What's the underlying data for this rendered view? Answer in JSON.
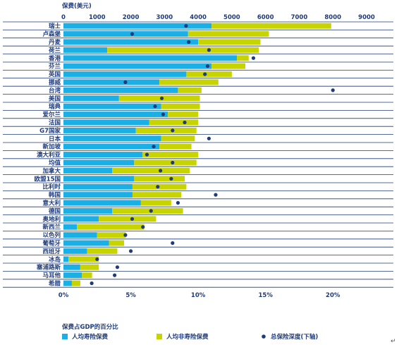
{
  "chart_data": {
    "type": "bar",
    "subtype": "stacked-horizontal-with-dots",
    "top_axis": {
      "title": "保费(美元)",
      "ticks": [
        0,
        1000,
        2000,
        3000,
        4000,
        5000,
        6000,
        7000,
        8000,
        9000
      ],
      "range": [
        0,
        9000
      ]
    },
    "bottom_axis": {
      "title": "保费占GDP的百分比",
      "ticks": [
        "0%",
        "5%",
        "10%",
        "15%",
        "20%"
      ],
      "range": [
        0,
        22.5
      ],
      "tick_values": [
        0,
        5,
        10,
        15,
        20
      ]
    },
    "categories": [
      "瑞士",
      "卢森堡",
      "丹麦",
      "荷兰",
      "香港",
      "芬兰",
      "英国",
      "挪威",
      "台湾",
      "美国",
      "瑞典",
      "爱尔兰",
      "法国",
      "G7国家",
      "日本",
      "新加坡",
      "澳大利亚",
      "均值",
      "加拿大",
      "欧盟15国",
      "比利时",
      "韩国",
      "意大利",
      "德国",
      "奥地利",
      "新西兰",
      "以色列",
      "葡萄牙",
      "西班牙",
      "冰岛",
      "塞浦路斯",
      "马耳他",
      "希腊"
    ],
    "series": [
      {
        "name": "人均寿险保费",
        "color": "#1ab0e6",
        "values": [
          4400,
          3700,
          4000,
          1300,
          5150,
          4400,
          3650,
          2850,
          3400,
          1650,
          2900,
          3100,
          2550,
          2150,
          2900,
          2850,
          2350,
          2100,
          1450,
          2100,
          2050,
          2050,
          2300,
          1450,
          1050,
          400,
          1000,
          1350,
          700,
          150,
          500,
          550,
          250
        ]
      },
      {
        "name": "人均非寿险保费",
        "color": "#c8d400",
        "values": [
          3550,
          2400,
          1850,
          4500,
          350,
          1000,
          1350,
          1750,
          700,
          2400,
          1150,
          900,
          1450,
          1800,
          1000,
          950,
          1650,
          1850,
          2300,
          1500,
          1600,
          1450,
          900,
          2100,
          1700,
          2000,
          850,
          450,
          900,
          900,
          550,
          300,
          250
        ]
      },
      {
        "name": "总保险深度(下轴)",
        "color": "#1f3b7a",
        "type": "dot",
        "values": [
          9.1,
          5.1,
          9.3,
          10.8,
          14.1,
          10.7,
          10.5,
          4.6,
          20.0,
          7.3,
          6.8,
          7.4,
          9.0,
          8.1,
          10.8,
          6.7,
          6.2,
          8.1,
          7.2,
          8.0,
          7.0,
          11.3,
          8.5,
          6.5,
          5.1,
          5.9,
          4.6,
          8.1,
          5.0,
          2.5,
          4.0,
          3.8,
          2.1
        ]
      }
    ]
  },
  "legend": {
    "items": [
      {
        "label": "人均寿险保费",
        "color": "#1ab0e6",
        "marker": "square"
      },
      {
        "label": "人均非寿险保费",
        "color": "#c8d400",
        "marker": "square"
      },
      {
        "label": "总保险深度(下轴)",
        "color": "#1f3b7a",
        "marker": "dot"
      }
    ]
  },
  "colors": {
    "separator": "#1f3b7a",
    "label_text": "#1f3b7a"
  },
  "extra": {
    "return_mark": "↵"
  }
}
